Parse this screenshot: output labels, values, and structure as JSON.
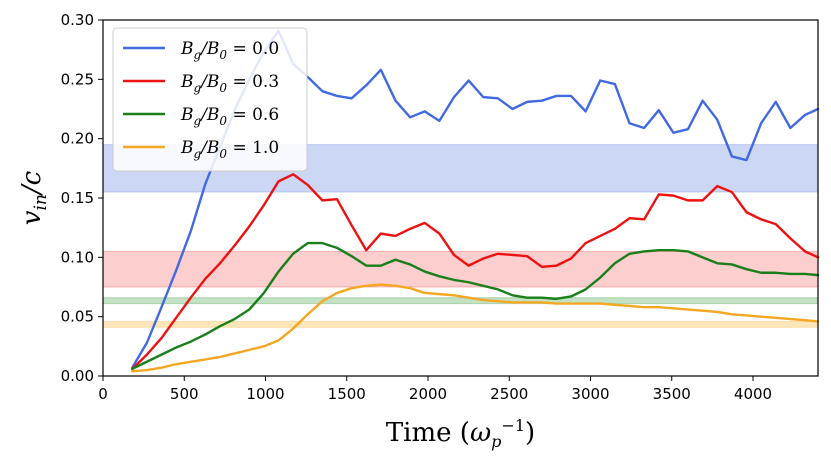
{
  "chart_data": {
    "type": "line",
    "title": "",
    "xlabel": "Time (ω_p^-1)",
    "ylabel": "v_in/c",
    "xlim": [
      0,
      4400
    ],
    "ylim": [
      0,
      0.3
    ],
    "x_ticks": [
      0,
      500,
      1000,
      1500,
      2000,
      2500,
      3000,
      3500,
      4000
    ],
    "y_ticks": [
      0.0,
      0.05,
      0.1,
      0.15,
      0.2,
      0.25,
      0.3
    ],
    "x_tick_labels": [
      "0",
      "500",
      "1000",
      "1500",
      "2000",
      "2500",
      "3000",
      "3500",
      "4000"
    ],
    "y_tick_labels": [
      "0.00",
      "0.05",
      "0.10",
      "0.15",
      "0.20",
      "0.25",
      "0.30"
    ],
    "grid": false,
    "legend_position": "top-left",
    "series": [
      {
        "name": "B_g/B_0 = 0.0",
        "label_main": "B",
        "label_sub": "g",
        "label_main2": "/B",
        "label_sub2": "0",
        "label_eq": " = 0.0",
        "color": "#4169e1",
        "band": [
          0.155,
          0.195
        ],
        "band_color": "#c3cff3",
        "points": [
          [
            180,
            0.007
          ],
          [
            270,
            0.028
          ],
          [
            360,
            0.058
          ],
          [
            450,
            0.089
          ],
          [
            540,
            0.122
          ],
          [
            630,
            0.162
          ],
          [
            720,
            0.193
          ],
          [
            810,
            0.224
          ],
          [
            900,
            0.25
          ],
          [
            990,
            0.273
          ],
          [
            1080,
            0.291
          ],
          [
            1170,
            0.263
          ],
          [
            1260,
            0.252
          ],
          [
            1350,
            0.24
          ],
          [
            1440,
            0.236
          ],
          [
            1530,
            0.234
          ],
          [
            1620,
            0.245
          ],
          [
            1710,
            0.258
          ],
          [
            1800,
            0.232
          ],
          [
            1890,
            0.218
          ],
          [
            1980,
            0.223
          ],
          [
            2070,
            0.215
          ],
          [
            2160,
            0.235
          ],
          [
            2250,
            0.249
          ],
          [
            2340,
            0.235
          ],
          [
            2430,
            0.234
          ],
          [
            2520,
            0.225
          ],
          [
            2610,
            0.231
          ],
          [
            2700,
            0.232
          ],
          [
            2790,
            0.236
          ],
          [
            2880,
            0.236
          ],
          [
            2970,
            0.223
          ],
          [
            3060,
            0.249
          ],
          [
            3150,
            0.246
          ],
          [
            3240,
            0.213
          ],
          [
            3330,
            0.209
          ],
          [
            3420,
            0.224
          ],
          [
            3510,
            0.205
          ],
          [
            3600,
            0.208
          ],
          [
            3690,
            0.232
          ],
          [
            3780,
            0.216
          ],
          [
            3870,
            0.185
          ],
          [
            3960,
            0.182
          ],
          [
            4050,
            0.213
          ],
          [
            4140,
            0.231
          ],
          [
            4230,
            0.209
          ],
          [
            4320,
            0.22
          ],
          [
            4400,
            0.225
          ]
        ]
      },
      {
        "name": "B_g/B_0 = 0.3",
        "label_main": "B",
        "label_sub": "g",
        "label_main2": "/B",
        "label_sub2": "0",
        "label_eq": " = 0.3",
        "color": "#ee1111",
        "band": [
          0.075,
          0.105
        ],
        "band_color": "#fbc6c6",
        "points": [
          [
            180,
            0.006
          ],
          [
            270,
            0.018
          ],
          [
            360,
            0.032
          ],
          [
            450,
            0.049
          ],
          [
            540,
            0.066
          ],
          [
            630,
            0.082
          ],
          [
            720,
            0.095
          ],
          [
            810,
            0.11
          ],
          [
            900,
            0.126
          ],
          [
            990,
            0.144
          ],
          [
            1080,
            0.164
          ],
          [
            1170,
            0.17
          ],
          [
            1260,
            0.161
          ],
          [
            1350,
            0.148
          ],
          [
            1440,
            0.149
          ],
          [
            1530,
            0.127
          ],
          [
            1620,
            0.106
          ],
          [
            1710,
            0.12
          ],
          [
            1800,
            0.118
          ],
          [
            1890,
            0.124
          ],
          [
            1980,
            0.129
          ],
          [
            2070,
            0.12
          ],
          [
            2160,
            0.102
          ],
          [
            2250,
            0.093
          ],
          [
            2340,
            0.099
          ],
          [
            2430,
            0.103
          ],
          [
            2520,
            0.102
          ],
          [
            2610,
            0.101
          ],
          [
            2700,
            0.092
          ],
          [
            2790,
            0.093
          ],
          [
            2880,
            0.099
          ],
          [
            2970,
            0.112
          ],
          [
            3060,
            0.118
          ],
          [
            3150,
            0.124
          ],
          [
            3240,
            0.133
          ],
          [
            3330,
            0.132
          ],
          [
            3420,
            0.153
          ],
          [
            3510,
            0.152
          ],
          [
            3600,
            0.148
          ],
          [
            3690,
            0.148
          ],
          [
            3780,
            0.16
          ],
          [
            3870,
            0.155
          ],
          [
            3960,
            0.138
          ],
          [
            4050,
            0.132
          ],
          [
            4140,
            0.128
          ],
          [
            4230,
            0.116
          ],
          [
            4320,
            0.105
          ],
          [
            4400,
            0.1
          ]
        ]
      },
      {
        "name": "B_g/B_0 = 0.6",
        "label_main": "B",
        "label_sub": "g",
        "label_main2": "/B",
        "label_sub2": "0",
        "label_eq": " = 0.6",
        "color": "#1a7f1a",
        "band": [
          0.061,
          0.066
        ],
        "band_color": "#b8dcb8",
        "points": [
          [
            180,
            0.006
          ],
          [
            270,
            0.012
          ],
          [
            360,
            0.018
          ],
          [
            450,
            0.024
          ],
          [
            540,
            0.029
          ],
          [
            630,
            0.035
          ],
          [
            720,
            0.042
          ],
          [
            810,
            0.048
          ],
          [
            900,
            0.056
          ],
          [
            990,
            0.07
          ],
          [
            1080,
            0.088
          ],
          [
            1170,
            0.103
          ],
          [
            1260,
            0.112
          ],
          [
            1350,
            0.112
          ],
          [
            1440,
            0.108
          ],
          [
            1530,
            0.101
          ],
          [
            1620,
            0.093
          ],
          [
            1710,
            0.093
          ],
          [
            1800,
            0.098
          ],
          [
            1890,
            0.094
          ],
          [
            1980,
            0.088
          ],
          [
            2070,
            0.084
          ],
          [
            2160,
            0.081
          ],
          [
            2250,
            0.079
          ],
          [
            2340,
            0.076
          ],
          [
            2430,
            0.073
          ],
          [
            2520,
            0.068
          ],
          [
            2610,
            0.066
          ],
          [
            2700,
            0.066
          ],
          [
            2790,
            0.065
          ],
          [
            2880,
            0.067
          ],
          [
            2970,
            0.073
          ],
          [
            3060,
            0.083
          ],
          [
            3150,
            0.095
          ],
          [
            3240,
            0.103
          ],
          [
            3330,
            0.105
          ],
          [
            3420,
            0.106
          ],
          [
            3510,
            0.106
          ],
          [
            3600,
            0.105
          ],
          [
            3690,
            0.1
          ],
          [
            3780,
            0.095
          ],
          [
            3870,
            0.094
          ],
          [
            3960,
            0.09
          ],
          [
            4050,
            0.087
          ],
          [
            4140,
            0.087
          ],
          [
            4230,
            0.086
          ],
          [
            4320,
            0.086
          ],
          [
            4400,
            0.085
          ]
        ]
      },
      {
        "name": "B_g/B_0 = 1.0",
        "label_main": "B",
        "label_sub": "g",
        "label_main2": "/B",
        "label_sub2": "0",
        "label_eq": " = 1.0",
        "color": "#f5a623",
        "band": [
          0.041,
          0.046
        ],
        "band_color": "#fbe2ae",
        "points": [
          [
            180,
            0.004
          ],
          [
            270,
            0.005
          ],
          [
            360,
            0.007
          ],
          [
            450,
            0.01
          ],
          [
            540,
            0.012
          ],
          [
            630,
            0.014
          ],
          [
            720,
            0.016
          ],
          [
            810,
            0.019
          ],
          [
            900,
            0.022
          ],
          [
            990,
            0.025
          ],
          [
            1080,
            0.03
          ],
          [
            1170,
            0.04
          ],
          [
            1260,
            0.052
          ],
          [
            1350,
            0.063
          ],
          [
            1440,
            0.07
          ],
          [
            1530,
            0.074
          ],
          [
            1620,
            0.076
          ],
          [
            1710,
            0.077
          ],
          [
            1800,
            0.076
          ],
          [
            1890,
            0.074
          ],
          [
            1980,
            0.07
          ],
          [
            2070,
            0.069
          ],
          [
            2160,
            0.068
          ],
          [
            2250,
            0.066
          ],
          [
            2340,
            0.064
          ],
          [
            2430,
            0.063
          ],
          [
            2520,
            0.062
          ],
          [
            2610,
            0.062
          ],
          [
            2700,
            0.062
          ],
          [
            2790,
            0.061
          ],
          [
            2880,
            0.061
          ],
          [
            2970,
            0.061
          ],
          [
            3060,
            0.061
          ],
          [
            3150,
            0.06
          ],
          [
            3240,
            0.059
          ],
          [
            3330,
            0.058
          ],
          [
            3420,
            0.058
          ],
          [
            3510,
            0.057
          ],
          [
            3600,
            0.056
          ],
          [
            3690,
            0.055
          ],
          [
            3780,
            0.054
          ],
          [
            3870,
            0.052
          ],
          [
            3960,
            0.051
          ],
          [
            4050,
            0.05
          ],
          [
            4140,
            0.049
          ],
          [
            4230,
            0.048
          ],
          [
            4320,
            0.047
          ],
          [
            4400,
            0.046
          ]
        ]
      }
    ]
  }
}
